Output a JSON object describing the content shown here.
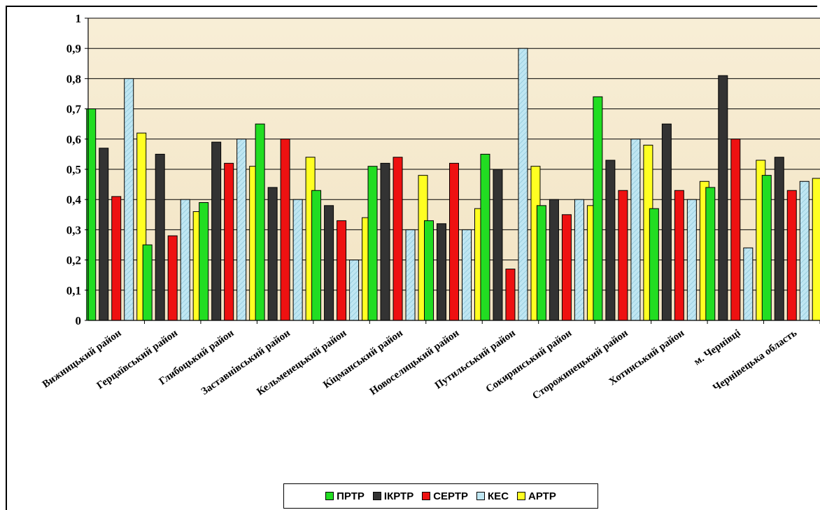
{
  "chart_data": {
    "type": "bar",
    "categories": [
      "Вижницький район",
      "Герцаївський район",
      "Глибоцький район",
      "Заставнівський район",
      "Кельменецький район",
      "Кіцманський район",
      "Новоселицький район",
      "Путильський район",
      "Сокирянський район",
      "Сторожинецький район",
      "Хотинський район",
      "м. Чернівці",
      "Чернівецька область"
    ],
    "series": [
      {
        "name": "ПРТР",
        "color": "#22dd22",
        "values": [
          0.7,
          0.25,
          0.39,
          0.65,
          0.43,
          0.51,
          0.33,
          0.55,
          0.38,
          0.74,
          0.37,
          0.44,
          0.48
        ]
      },
      {
        "name": "ІКРТР",
        "color": "#333333",
        "values": [
          0.57,
          0.55,
          0.59,
          0.44,
          0.38,
          0.52,
          0.32,
          0.5,
          0.4,
          0.53,
          0.65,
          0.81,
          0.54
        ]
      },
      {
        "name": "СЕРТР",
        "color": "#ee1111",
        "values": [
          0.41,
          0.28,
          0.52,
          0.6,
          0.33,
          0.54,
          0.52,
          0.17,
          0.35,
          0.43,
          0.43,
          0.6,
          0.43
        ]
      },
      {
        "name": "КЕС",
        "color": "#bfe6f2",
        "values": [
          0.8,
          0.4,
          0.6,
          0.4,
          0.2,
          0.3,
          0.3,
          0.9,
          0.4,
          0.6,
          0.4,
          0.24,
          0.46
        ]
      },
      {
        "name": "АРТР",
        "color": "#ffff22",
        "values": [
          0.62,
          0.36,
          0.51,
          0.54,
          0.34,
          0.48,
          0.37,
          0.51,
          0.38,
          0.58,
          0.46,
          0.53,
          0.47
        ]
      }
    ],
    "y_ticks": [
      "0",
      "0,1",
      "0,2",
      "0,3",
      "0,4",
      "0,5",
      "0,6",
      "0,7",
      "0,8",
      "0,9",
      "1"
    ],
    "ylim": [
      0,
      1
    ],
    "grid": true,
    "legend_position": "bottom",
    "colors": {
      "plot_background": "#f6ecd4",
      "grid": "#000000"
    }
  }
}
